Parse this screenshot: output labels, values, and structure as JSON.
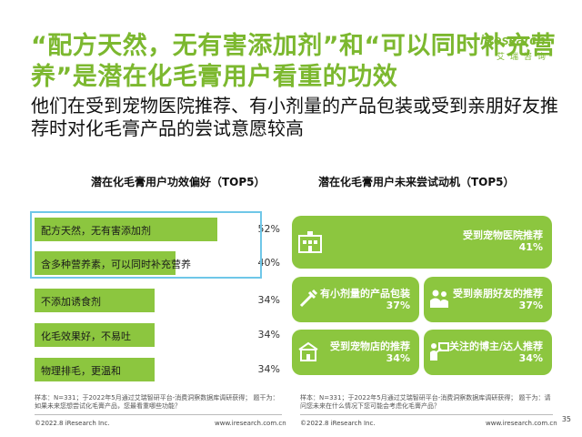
{
  "title": "“配方天然，无有害添加剂”和“可以同时补充营养”是潜在化毛膏用户看重的功效",
  "subtitle": "他们在受到宠物医院推荐、有小剂量的产品包装或受到亲朋好友推荐时对化毛膏产品的尝试意愿较高",
  "logo": {
    "brand": "iResearch",
    "cn": "艾瑞咨询"
  },
  "left_chart_title": "潜在化毛膏用户功效偏好（TOP5）",
  "right_chart_title": "潜在化毛膏用户未来尝试动机（TOP5）",
  "chart_data": [
    {
      "type": "bar",
      "title": "潜在化毛膏用户功效偏好（TOP5）",
      "categories": [
        "配方天然，无有害添加剂",
        "含多种营养素，可以同时补充营养",
        "不添加诱食剂",
        "化毛效果好，不易吐",
        "物理排毛，更温和"
      ],
      "values": [
        52,
        40,
        34,
        34,
        34
      ],
      "value_labels": [
        "52%",
        "40%",
        "34%",
        "34%",
        "34%"
      ],
      "xlim": [
        0,
        60
      ],
      "colors": {
        "bar": "#8cc63f",
        "highlight_border": "#6fc7e8"
      }
    },
    {
      "type": "table",
      "title": "潜在化毛膏用户未来尝试动机（TOP5）",
      "items": [
        {
          "label": "受到宠物医院推荐",
          "value": "41%",
          "icon": "hospital-icon"
        },
        {
          "label": "有小剂量的产品包装",
          "value": "37%",
          "icon": "syringe-icon"
        },
        {
          "label": "受到亲朋好友的推荐",
          "value": "37%",
          "icon": "people-icon"
        },
        {
          "label": "受到宠物店的推荐",
          "value": "34%",
          "icon": "shop-icon"
        },
        {
          "label": "关注的博主/达人推荐",
          "value": "34%",
          "icon": "presenter-icon"
        }
      ]
    }
  ],
  "notes": {
    "left": "样本：N=331；于2022年5月通过艾瑞智研平台-消费洞察数据库调研获得；  题干为：如果未来您想尝试化毛膏产品，您最看重哪些功能？",
    "right": "样本：N=331；于2022年5月通过艾瑞智研平台-消费洞察数据库调研获得；  题干为：请问您未来在什么情况下您可能会考虑化毛膏产品？"
  },
  "footer": {
    "left_copyright": "©2022.8 iResearch Inc.",
    "left_url": "www.iresearch.com.cn",
    "right_copyright": "©2022.8 iResearch Inc.",
    "right_url": "www.iresearch.com.cn",
    "page": "35"
  },
  "colors": {
    "accent": "#7cb82f",
    "tile": "#8cc63f"
  }
}
